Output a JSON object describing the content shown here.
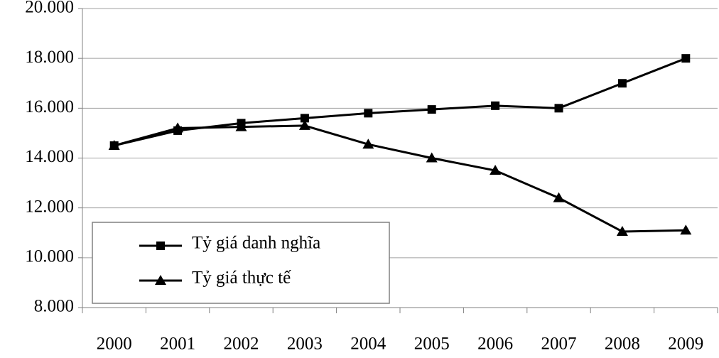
{
  "chart_data": {
    "type": "line",
    "categories": [
      "2000",
      "2001",
      "2002",
      "2003",
      "2004",
      "2005",
      "2006",
      "2007",
      "2008",
      "2009"
    ],
    "series": [
      {
        "name": "Tỷ giá danh nghĩa",
        "color": "#000000",
        "marker": "square",
        "values": [
          14500,
          15100,
          15400,
          15600,
          15800,
          15950,
          16100,
          16000,
          17000,
          18000
        ]
      },
      {
        "name": "Tỷ giá thực tế",
        "color": "#000000",
        "marker": "triangle",
        "values": [
          14500,
          15200,
          15250,
          15300,
          14550,
          14000,
          13500,
          12400,
          11050,
          11100
        ]
      }
    ],
    "ylim": [
      8000,
      20000
    ],
    "yticks": [
      {
        "value": 8000,
        "label": "8.000"
      },
      {
        "value": 10000,
        "label": "10.000"
      },
      {
        "value": 12000,
        "label": "12.000"
      },
      {
        "value": 14000,
        "label": "14.000"
      },
      {
        "value": 16000,
        "label": "16.000"
      },
      {
        "value": 18000,
        "label": "18.000"
      },
      {
        "value": 20000,
        "label": "20.000"
      }
    ],
    "grid": true,
    "legend": "lower left"
  }
}
